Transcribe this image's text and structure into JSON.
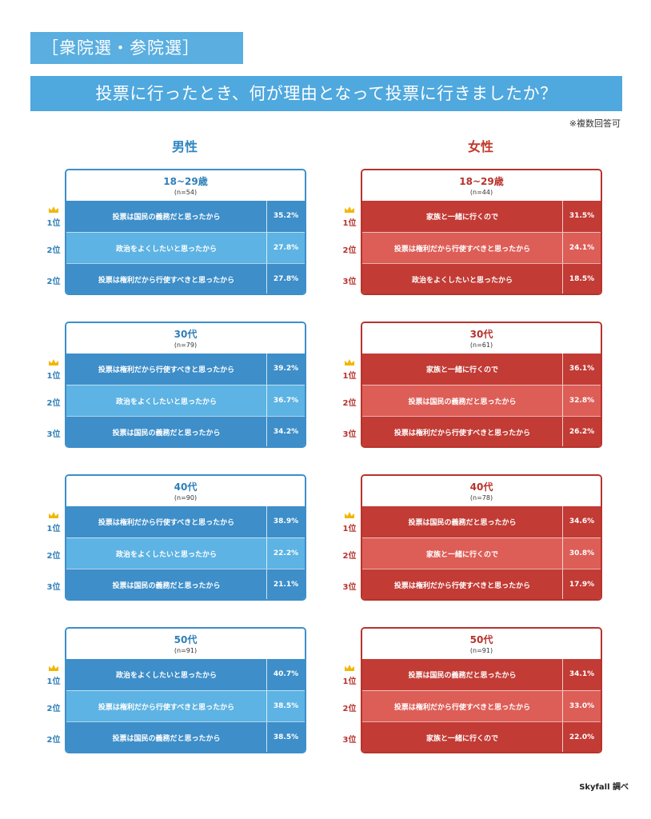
{
  "header": {
    "tag": "［衆院選・参院選］",
    "question": "投票に行ったとき、何が理由となって投票に行きましたか？",
    "note": "※複数回答可"
  },
  "genders": {
    "male": "男性",
    "female": "女性"
  },
  "footer": "Skyfall 調べ",
  "colors": {
    "male_dark": "#3d8ec9",
    "male_light": "#5db3e3",
    "female_dark": "#c23b35",
    "female_light": "#dd5e57",
    "crown": "#f2b705"
  },
  "crown_icon": "crown-icon",
  "chart_data": {
    "type": "table",
    "groups": [
      {
        "gender": "男性",
        "age": "18~29歳",
        "n": "(n=54)",
        "rows": [
          {
            "rank": "1位",
            "reason": "投票は国民の義務だと思ったから",
            "value": 35.2,
            "label": "35.2%"
          },
          {
            "rank": "2位",
            "reason": "政治をよくしたいと思ったから",
            "value": 27.8,
            "label": "27.8%"
          },
          {
            "rank": "2位",
            "reason": "投票は権利だから行使すべきと思ったから",
            "value": 27.8,
            "label": "27.8%"
          }
        ]
      },
      {
        "gender": "女性",
        "age": "18~29歳",
        "n": "(n=44)",
        "rows": [
          {
            "rank": "1位",
            "reason": "家族と一緒に行くので",
            "value": 31.5,
            "label": "31.5%"
          },
          {
            "rank": "2位",
            "reason": "投票は権利だから行使すべきと思ったから",
            "value": 24.1,
            "label": "24.1%"
          },
          {
            "rank": "3位",
            "reason": "政治をよくしたいと思ったから",
            "value": 18.5,
            "label": "18.5%"
          }
        ]
      },
      {
        "gender": "男性",
        "age": "30代",
        "n": "(n=79)",
        "rows": [
          {
            "rank": "1位",
            "reason": "投票は権利だから行使すべきと思ったから",
            "value": 39.2,
            "label": "39.2%"
          },
          {
            "rank": "2位",
            "reason": "政治をよくしたいと思ったから",
            "value": 36.7,
            "label": "36.7%"
          },
          {
            "rank": "3位",
            "reason": "投票は国民の義務だと思ったから",
            "value": 34.2,
            "label": "34.2%"
          }
        ]
      },
      {
        "gender": "女性",
        "age": "30代",
        "n": "(n=61)",
        "rows": [
          {
            "rank": "1位",
            "reason": "家族と一緒に行くので",
            "value": 36.1,
            "label": "36.1%"
          },
          {
            "rank": "2位",
            "reason": "投票は国民の義務だと思ったから",
            "value": 32.8,
            "label": "32.8%"
          },
          {
            "rank": "3位",
            "reason": "投票は権利だから行使すべきと思ったから",
            "value": 26.2,
            "label": "26.2%"
          }
        ]
      },
      {
        "gender": "男性",
        "age": "40代",
        "n": "(n=90)",
        "rows": [
          {
            "rank": "1位",
            "reason": "投票は権利だから行使すべきと思ったから",
            "value": 38.9,
            "label": "38.9%"
          },
          {
            "rank": "2位",
            "reason": "政治をよくしたいと思ったから",
            "value": 22.2,
            "label": "22.2%"
          },
          {
            "rank": "3位",
            "reason": "投票は国民の義務だと思ったから",
            "value": 21.1,
            "label": "21.1%"
          }
        ]
      },
      {
        "gender": "女性",
        "age": "40代",
        "n": "(n=78)",
        "rows": [
          {
            "rank": "1位",
            "reason": "投票は国民の義務だと思ったから",
            "value": 34.6,
            "label": "34.6%"
          },
          {
            "rank": "2位",
            "reason": "家族と一緒に行くので",
            "value": 30.8,
            "label": "30.8%"
          },
          {
            "rank": "3位",
            "reason": "投票は権利だから行使すべきと思ったから",
            "value": 17.9,
            "label": "17.9%"
          }
        ]
      },
      {
        "gender": "男性",
        "age": "50代",
        "n": "(n=91)",
        "rows": [
          {
            "rank": "1位",
            "reason": "政治をよくしたいと思ったから",
            "value": 40.7,
            "label": "40.7%"
          },
          {
            "rank": "2位",
            "reason": "投票は権利だから行使すべきと思ったから",
            "value": 38.5,
            "label": "38.5%"
          },
          {
            "rank": "2位",
            "reason": "投票は国民の義務だと思ったから",
            "value": 38.5,
            "label": "38.5%"
          }
        ]
      },
      {
        "gender": "女性",
        "age": "50代",
        "n": "(n=91)",
        "rows": [
          {
            "rank": "1位",
            "reason": "投票は国民の義務だと思ったから",
            "value": 34.1,
            "label": "34.1%"
          },
          {
            "rank": "2位",
            "reason": "投票は権利だから行使すべきと思ったから",
            "value": 33.0,
            "label": "33.0%"
          },
          {
            "rank": "3位",
            "reason": "家族と一緒に行くので",
            "value": 22.0,
            "label": "22.0%"
          }
        ]
      }
    ]
  }
}
